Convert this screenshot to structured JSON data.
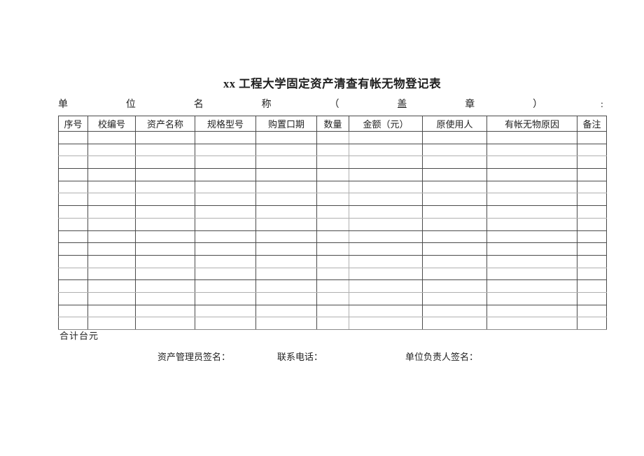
{
  "document": {
    "title": "xx 工程大学固定资产清查有帐无物登记表",
    "unit_seal_line": {
      "chars": [
        "单",
        "位",
        "名",
        "称",
        "（",
        "盖",
        "章",
        "）",
        ":"
      ]
    },
    "table": {
      "columns": [
        {
          "label": "序号"
        },
        {
          "label": "校编号"
        },
        {
          "label": "资产名称"
        },
        {
          "label": "规格型号"
        },
        {
          "label": "购置口期"
        },
        {
          "label": "数量"
        },
        {
          "label": "金额（元）"
        },
        {
          "label": "原使用人"
        },
        {
          "label": "有帐无物原因"
        },
        {
          "label": "备注"
        }
      ],
      "empty_row_count": 16
    },
    "total_label": "合计台元",
    "signature_labels": {
      "asset_manager": "资产管理员签名：",
      "phone": "联系电话：",
      "unit_head": "单位负责人签名："
    }
  }
}
